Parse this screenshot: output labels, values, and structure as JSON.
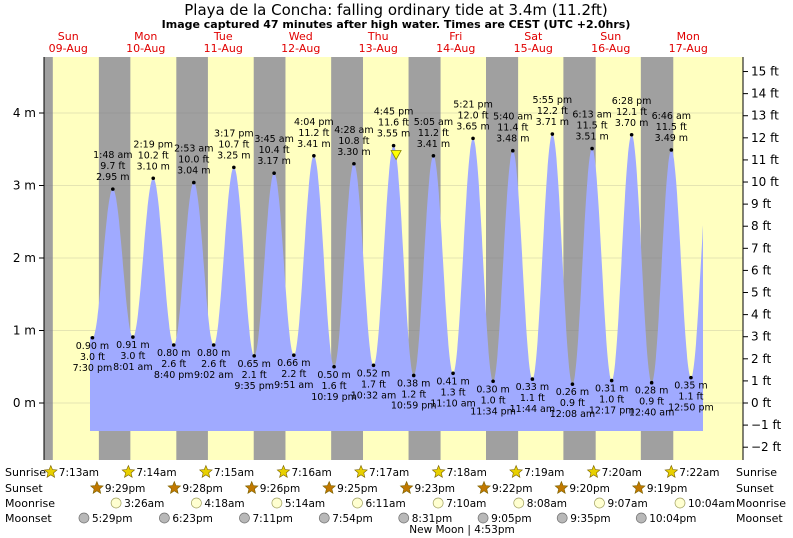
{
  "title": "Playa de la Concha: falling  ordinary tide at 3.4m (11.2ft)",
  "subtitle": "Image captured 47 minutes after high water. Times are CEST (UTC +2.0hrs)",
  "days": [
    {
      "name": "Sun",
      "date": "09-Aug"
    },
    {
      "name": "Mon",
      "date": "10-Aug"
    },
    {
      "name": "Tue",
      "date": "11-Aug"
    },
    {
      "name": "Wed",
      "date": "12-Aug"
    },
    {
      "name": "Thu",
      "date": "13-Aug"
    },
    {
      "name": "Fri",
      "date": "14-Aug"
    },
    {
      "name": "Sat",
      "date": "15-Aug"
    },
    {
      "name": "Sun",
      "date": "16-Aug"
    },
    {
      "name": "Mon",
      "date": "17-Aug"
    }
  ],
  "colors": {
    "day": "#ffffc0",
    "night": "#a0a0a0",
    "water": "#a0aaff",
    "day_label": "#e00000",
    "sun": "#e8d000",
    "sunset": "#c07800"
  },
  "chart_data": {
    "type": "area",
    "x_unit": "hours since Sun 09-Aug 00:00 CEST",
    "y_left": {
      "label": "m",
      "ticks": [
        "0 m",
        "1 m",
        "2 m",
        "3 m",
        "4 m"
      ],
      "range": [
        -0.45,
        4.75
      ]
    },
    "y_right": {
      "label": "ft",
      "ticks": [
        "−2 ft",
        "−1 ft",
        "0 ft",
        "1 ft",
        "2 ft",
        "3 ft",
        "4 ft",
        "5 ft",
        "6 ft",
        "7 ft",
        "8 ft",
        "9 ft",
        "10 ft",
        "11 ft",
        "12 ft",
        "13 ft",
        "14 ft",
        "15 ft"
      ]
    },
    "tides": [
      {
        "type": "low",
        "time": "7:30 pm",
        "m": 0.9,
        "m_label": "0.90 m",
        "ft_label": "3.0 ft"
      },
      {
        "type": "high",
        "time": "1:48 am",
        "m": 2.95,
        "m_label": "2.95 m",
        "ft_label": "9.7 ft"
      },
      {
        "type": "low",
        "time": "8:01 am",
        "m": 0.91,
        "m_label": "0.91 m",
        "ft_label": "3.0 ft"
      },
      {
        "type": "high",
        "time": "2:19 pm",
        "m": 3.1,
        "m_label": "3.10 m",
        "ft_label": "10.2 ft"
      },
      {
        "type": "low",
        "time": "8:40 pm",
        "m": 0.8,
        "m_label": "0.80 m",
        "ft_label": "2.6 ft"
      },
      {
        "type": "high",
        "time": "2:53 am",
        "m": 3.04,
        "m_label": "3.04 m",
        "ft_label": "10.0 ft"
      },
      {
        "type": "low",
        "time": "9:02 am",
        "m": 0.8,
        "m_label": "0.80 m",
        "ft_label": "2.6 ft"
      },
      {
        "type": "high",
        "time": "3:17 pm",
        "m": 3.25,
        "m_label": "3.25 m",
        "ft_label": "10.7 ft"
      },
      {
        "type": "low",
        "time": "9:35 pm",
        "m": 0.65,
        "m_label": "0.65 m",
        "ft_label": "2.1 ft"
      },
      {
        "type": "high",
        "time": "3:45 am",
        "m": 3.17,
        "m_label": "3.17 m",
        "ft_label": "10.4 ft"
      },
      {
        "type": "low",
        "time": "9:51 am",
        "m": 0.66,
        "m_label": "0.66 m",
        "ft_label": "2.2 ft"
      },
      {
        "type": "high",
        "time": "4:04 pm",
        "m": 3.41,
        "m_label": "3.41 m",
        "ft_label": "11.2 ft"
      },
      {
        "type": "low",
        "time": "10:19 pm",
        "m": 0.5,
        "m_label": "0.50 m",
        "ft_label": "1.6 ft"
      },
      {
        "type": "high",
        "time": "4:28 am",
        "m": 3.3,
        "m_label": "3.30 m",
        "ft_label": "10.8 ft"
      },
      {
        "type": "low",
        "time": "10:32 am",
        "m": 0.52,
        "m_label": "0.52 m",
        "ft_label": "1.7 ft"
      },
      {
        "type": "high",
        "time": "4:45 pm",
        "m": 3.55,
        "m_label": "3.55 m",
        "ft_label": "11.6 ft"
      },
      {
        "type": "low",
        "time": "10:59 pm",
        "m": 0.38,
        "m_label": "0.38 m",
        "ft_label": "1.2 ft"
      },
      {
        "type": "high",
        "time": "5:05 am",
        "m": 3.41,
        "m_label": "3.41 m",
        "ft_label": "11.2 ft"
      },
      {
        "type": "low",
        "time": "11:10 am",
        "m": 0.41,
        "m_label": "0.41 m",
        "ft_label": "1.3 ft"
      },
      {
        "type": "high",
        "time": "5:21 pm",
        "m": 3.65,
        "m_label": "3.65 m",
        "ft_label": "12.0 ft"
      },
      {
        "type": "low",
        "time": "11:34 pm",
        "m": 0.3,
        "m_label": "0.30 m",
        "ft_label": "1.0 ft"
      },
      {
        "type": "high",
        "time": "5:40 am",
        "m": 3.48,
        "m_label": "3.48 m",
        "ft_label": "11.4 ft"
      },
      {
        "type": "low",
        "time": "11:44 am",
        "m": 0.33,
        "m_label": "0.33 m",
        "ft_label": "1.1 ft"
      },
      {
        "type": "high",
        "time": "5:55 pm",
        "m": 3.71,
        "m_label": "3.71 m",
        "ft_label": "12.2 ft"
      },
      {
        "type": "low",
        "time": "12:08 am",
        "m": 0.26,
        "m_label": "0.26 m",
        "ft_label": "0.9 ft"
      },
      {
        "type": "high",
        "time": "6:13 am",
        "m": 3.51,
        "m_label": "3.51 m",
        "ft_label": "11.5 ft"
      },
      {
        "type": "low",
        "time": "12:17 pm",
        "m": 0.31,
        "m_label": "0.31 m",
        "ft_label": "1.0 ft"
      },
      {
        "type": "high",
        "time": "6:28 pm",
        "m": 3.7,
        "m_label": "3.70 m",
        "ft_label": "12.1 ft"
      },
      {
        "type": "low",
        "time": "12:40 am",
        "m": 0.28,
        "m_label": "0.28 m",
        "ft_label": "0.9 ft"
      },
      {
        "type": "high",
        "time": "6:46 am",
        "m": 3.49,
        "m_label": "3.49 m",
        "ft_label": "11.5 ft"
      },
      {
        "type": "low",
        "time": "12:50 pm",
        "m": 0.35,
        "m_label": "0.35 m",
        "ft_label": "1.1 ft"
      }
    ],
    "current_marker": {
      "time": "5:32 pm Thu 13-Aug",
      "m": 3.4
    }
  },
  "rows": {
    "sunrise": "Sunrise",
    "sunset": "Sunset",
    "moonrise": "Moonrise",
    "moonset": "Moonset"
  },
  "sunrise": [
    "7:13am",
    "7:14am",
    "7:15am",
    "7:16am",
    "7:17am",
    "7:18am",
    "7:19am",
    "7:20am",
    "7:22am"
  ],
  "sunset": [
    "9:29pm",
    "9:28pm",
    "9:26pm",
    "9:25pm",
    "9:23pm",
    "9:22pm",
    "9:20pm",
    "9:19pm"
  ],
  "moonrise": [
    "3:26am",
    "4:18am",
    "5:14am",
    "6:11am",
    "7:10am",
    "8:08am",
    "9:07am",
    "10:04am"
  ],
  "moonset": [
    "5:29pm",
    "6:23pm",
    "7:11pm",
    "7:54pm",
    "8:31pm",
    "9:05pm",
    "9:35pm",
    "10:04pm"
  ],
  "new_moon": "New Moon | 4:53pm"
}
